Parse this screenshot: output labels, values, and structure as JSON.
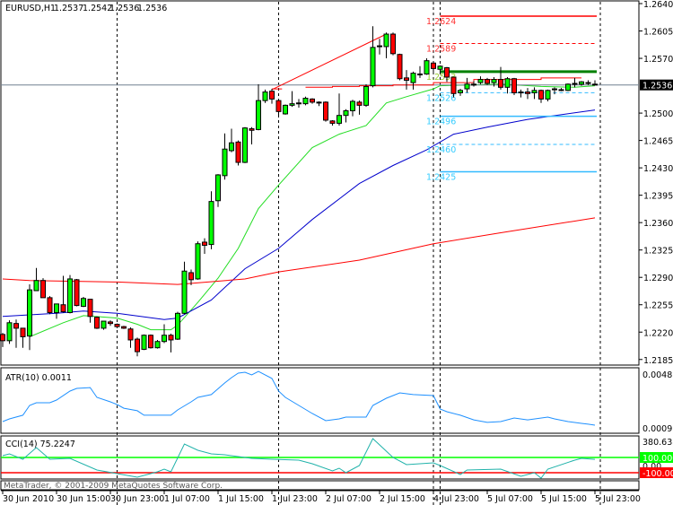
{
  "title": {
    "symbol": "EURUSD,H1",
    "open": "1.2537",
    "high": "1.2542",
    "low": "1.2536",
    "close": "1.2536"
  },
  "current_price": "1.2536",
  "price_axis": {
    "ticks": [
      "1.2640",
      "1.2605",
      "1.2570",
      "1.2500",
      "1.2465",
      "1.2430",
      "1.2395",
      "1.2360",
      "1.2325",
      "1.2290",
      "1.2255",
      "1.2220",
      "1.2185"
    ]
  },
  "atr": {
    "label": "ATR(10) 0.0011",
    "max_label": "0.0048",
    "min_label": "0.0009"
  },
  "cci": {
    "label": "CCI(14) 75.2247",
    "max_label": "380.6385",
    "upper_label": "100.0000",
    "zero_label": "0.00",
    "lower_label": "-100.0000"
  },
  "copyright": "MetaTrader, © 2001-2009 MetaQuotes Software Corp.",
  "time_axis": [
    {
      "label": "30 Jun 2010",
      "bar": 0
    },
    {
      "label": "30 Jun 15:00",
      "bar": 8
    },
    {
      "label": "30 Jun 23:00",
      "bar": 16
    },
    {
      "label": "1 Jul 07:00",
      "bar": 24
    },
    {
      "label": "1 Jul 15:00",
      "bar": 32
    },
    {
      "label": "1 Jul 23:00",
      "bar": 40
    },
    {
      "label": "2 Jul 07:00",
      "bar": 48
    },
    {
      "label": "2 Jul 15:00",
      "bar": 56
    },
    {
      "label": "4 Jul 23:00",
      "bar": 64
    },
    {
      "label": "5 Jul 07:00",
      "bar": 72
    },
    {
      "label": "5 Jul 15:00",
      "bar": 80
    },
    {
      "label": "5 Jul 23:00",
      "bar": 88
    }
  ],
  "period_separators": [
    17,
    41,
    64,
    65,
    88.8
  ],
  "colors": {
    "bull": "#00ff00",
    "bear": "#ff0000",
    "atr": "#1e90ff",
    "cci": "#20b2aa",
    "level_upper": "#00ff00",
    "level_lower": "#ff0000",
    "current_price_line": "#708090"
  },
  "chart_data": {
    "type": "candlestick",
    "ylim": [
      1.2185,
      1.264
    ],
    "candles_ohlc": [
      [
        1.2217,
        1.2219,
        1.2201,
        1.2209
      ],
      [
        1.2209,
        1.2235,
        1.2205,
        1.2232
      ],
      [
        1.2231,
        1.2236,
        1.22,
        1.2225
      ],
      [
        1.2225,
        1.2225,
        1.22,
        1.2214
      ],
      [
        1.2215,
        1.2281,
        1.2197,
        1.2274
      ],
      [
        1.2273,
        1.2302,
        1.2273,
        1.2286
      ],
      [
        1.2286,
        1.2289,
        1.2264,
        1.2264
      ],
      [
        1.2264,
        1.2266,
        1.2243,
        1.2245
      ],
      [
        1.2245,
        1.2256,
        1.2237,
        1.2256
      ],
      [
        1.2255,
        1.2292,
        1.2245,
        1.2246
      ],
      [
        1.2245,
        1.2293,
        1.2244,
        1.2288
      ],
      [
        1.2287,
        1.2288,
        1.2253,
        1.2254
      ],
      [
        1.2253,
        1.2265,
        1.2252,
        1.2263
      ],
      [
        1.2262,
        1.2262,
        1.2232,
        1.224
      ],
      [
        1.2239,
        1.224,
        1.2224,
        1.2225
      ],
      [
        1.2225,
        1.2234,
        1.2223,
        1.2234
      ],
      [
        1.2233,
        1.2235,
        1.2228,
        1.2231
      ],
      [
        1.223,
        1.2231,
        1.2225,
        1.2227
      ],
      [
        1.2227,
        1.2228,
        1.2224,
        1.2225
      ],
      [
        1.2224,
        1.2226,
        1.22,
        1.221
      ],
      [
        1.2211,
        1.2213,
        1.2189,
        1.2195
      ],
      [
        1.2198,
        1.2217,
        1.2197,
        1.2216
      ],
      [
        1.2216,
        1.2217,
        1.2199,
        1.22
      ],
      [
        1.22,
        1.221,
        1.2199,
        1.2208
      ],
      [
        1.2208,
        1.223,
        1.2206,
        1.2216
      ],
      [
        1.2216,
        1.2218,
        1.2194,
        1.221
      ],
      [
        1.2211,
        1.2246,
        1.221,
        1.2244
      ],
      [
        1.2244,
        1.231,
        1.2243,
        1.2298
      ],
      [
        1.2296,
        1.23,
        1.228,
        1.2287
      ],
      [
        1.2288,
        1.2336,
        1.2287,
        1.2333
      ],
      [
        1.2335,
        1.234,
        1.232,
        1.2331
      ],
      [
        1.2332,
        1.24,
        1.2326,
        1.2387
      ],
      [
        1.2388,
        1.2422,
        1.238,
        1.2421
      ],
      [
        1.242,
        1.2474,
        1.2415,
        1.2454
      ],
      [
        1.2452,
        1.248,
        1.245,
        1.2462
      ],
      [
        1.2463,
        1.2465,
        1.2433,
        1.2437
      ],
      [
        1.2437,
        1.2482,
        1.2436,
        1.2481
      ],
      [
        1.248,
        1.2482,
        1.246,
        1.2478
      ],
      [
        1.2479,
        1.2537,
        1.2478,
        1.2516
      ],
      [
        1.2516,
        1.253,
        1.2513,
        1.2527
      ],
      [
        1.2528,
        1.2531,
        1.2512,
        1.2518
      ],
      [
        1.2516,
        1.2517,
        1.2495,
        1.2502
      ],
      [
        1.2499,
        1.2511,
        1.2498,
        1.251
      ],
      [
        1.251,
        1.2528,
        1.2508,
        1.2512
      ],
      [
        1.2512,
        1.2518,
        1.2507,
        1.2513
      ],
      [
        1.2512,
        1.2521,
        1.251,
        1.2519
      ],
      [
        1.2518,
        1.2519,
        1.2512,
        1.2514
      ],
      [
        1.2514,
        1.2515,
        1.2509,
        1.2513
      ],
      [
        1.2514,
        1.2515,
        1.2489,
        1.2491
      ],
      [
        1.249,
        1.2491,
        1.2484,
        1.2487
      ],
      [
        1.2487,
        1.2525,
        1.2484,
        1.2497
      ],
      [
        1.2497,
        1.2505,
        1.2488,
        1.2503
      ],
      [
        1.2503,
        1.2517,
        1.2496,
        1.2515
      ],
      [
        1.2514,
        1.2516,
        1.2498,
        1.251
      ],
      [
        1.251,
        1.2537,
        1.2508,
        1.2534
      ],
      [
        1.2535,
        1.2611,
        1.2533,
        1.2584
      ],
      [
        1.2586,
        1.2595,
        1.2575,
        1.2585
      ],
      [
        1.2585,
        1.2603,
        1.257,
        1.2601
      ],
      [
        1.2601,
        1.2603,
        1.2574,
        1.2576
      ],
      [
        1.2575,
        1.2576,
        1.2542,
        1.2544
      ],
      [
        1.2545,
        1.2555,
        1.253,
        1.2542
      ],
      [
        1.2539,
        1.2553,
        1.253,
        1.2551
      ],
      [
        1.2549,
        1.256,
        1.2545,
        1.255
      ],
      [
        1.255,
        1.257,
        1.2549,
        1.2567
      ],
      [
        1.2564,
        1.2566,
        1.255,
        1.2557
      ],
      [
        1.2556,
        1.2561,
        1.255,
        1.256
      ],
      [
        1.2558,
        1.2559,
        1.254,
        1.2546
      ],
      [
        1.2546,
        1.2546,
        1.252,
        1.2525
      ],
      [
        1.2526,
        1.2531,
        1.2522,
        1.2529
      ],
      [
        1.2531,
        1.2545,
        1.2526,
        1.2537
      ],
      [
        1.2536,
        1.2541,
        1.2534,
        1.2537
      ],
      [
        1.2539,
        1.2547,
        1.2537,
        1.2543
      ],
      [
        1.2543,
        1.2545,
        1.2536,
        1.2538
      ],
      [
        1.2539,
        1.2546,
        1.2534,
        1.2543
      ],
      [
        1.2543,
        1.2559,
        1.253,
        1.2533
      ],
      [
        1.2533,
        1.2546,
        1.2525,
        1.2544
      ],
      [
        1.2544,
        1.2545,
        1.2523,
        1.2526
      ],
      [
        1.2526,
        1.253,
        1.252,
        1.2527
      ],
      [
        1.2527,
        1.2532,
        1.2518,
        1.2525
      ],
      [
        1.2526,
        1.2533,
        1.2518,
        1.2529
      ],
      [
        1.2529,
        1.253,
        1.2513,
        1.2518
      ],
      [
        1.2518,
        1.253,
        1.2515,
        1.2529
      ],
      [
        1.253,
        1.2533,
        1.2524,
        1.2531
      ],
      [
        1.253,
        1.2532,
        1.2528,
        1.253
      ],
      [
        1.2529,
        1.2538,
        1.2528,
        1.2537
      ],
      [
        1.2537,
        1.2545,
        1.2533,
        1.2538
      ],
      [
        1.2537,
        1.2541,
        1.2535,
        1.254
      ],
      [
        1.2539,
        1.2542,
        1.2536,
        1.2539
      ],
      [
        1.2537,
        1.2542,
        1.2536,
        1.2536
      ]
    ],
    "moving_averages": [
      {
        "color": "#22dd22",
        "points": [
          [
            4,
            1.2214
          ],
          [
            9,
            1.2232
          ],
          [
            12,
            1.2241
          ],
          [
            17,
            1.2238
          ],
          [
            20,
            1.223
          ],
          [
            22,
            1.2223
          ],
          [
            25,
            1.2223
          ],
          [
            26,
            1.2229
          ],
          [
            29,
            1.2258
          ],
          [
            32,
            1.2289
          ],
          [
            35,
            1.2327
          ],
          [
            38,
            1.2378
          ],
          [
            41,
            1.2408
          ],
          [
            46,
            1.2456
          ],
          [
            50,
            1.2473
          ],
          [
            54,
            1.2484
          ],
          [
            57,
            1.2513
          ],
          [
            60,
            1.2521
          ],
          [
            64,
            1.2531
          ],
          [
            65,
            1.2535
          ],
          [
            69,
            1.2536
          ],
          [
            74,
            1.2537
          ],
          [
            80,
            1.2534
          ],
          [
            85,
            1.2533
          ],
          [
            88,
            1.2535
          ]
        ]
      },
      {
        "color": "#0000cc",
        "points": [
          [
            0,
            1.224
          ],
          [
            8,
            1.2244
          ],
          [
            12,
            1.2247
          ],
          [
            17,
            1.2244
          ],
          [
            24,
            1.2236
          ],
          [
            26,
            1.2238
          ],
          [
            31,
            1.2261
          ],
          [
            36,
            1.2301
          ],
          [
            41,
            1.2327
          ],
          [
            46,
            1.2364
          ],
          [
            53,
            1.241
          ],
          [
            58,
            1.2433
          ],
          [
            63,
            1.2453
          ],
          [
            67,
            1.2473
          ],
          [
            72,
            1.2482
          ],
          [
            78,
            1.2492
          ],
          [
            88,
            1.2504
          ]
        ]
      },
      {
        "color": "#ff0000",
        "points": [
          [
            0,
            1.2288
          ],
          [
            4,
            1.2286
          ],
          [
            17,
            1.2284
          ],
          [
            26,
            1.2281
          ],
          [
            36,
            1.2288
          ],
          [
            41,
            1.2297
          ],
          [
            53,
            1.2312
          ],
          [
            64,
            1.2333
          ],
          [
            74,
            1.2347
          ],
          [
            88,
            1.2366
          ]
        ]
      }
    ],
    "trendline": {
      "color": "#ff0000",
      "points": [
        [
          40,
          1.253
        ],
        [
          57,
          1.2601
        ]
      ]
    },
    "step_line": {
      "color": "#ff0000",
      "points": [
        [
          40,
          1.2531
        ],
        [
          41.5,
          1.2531
        ],
        null,
        [
          45,
          1.2533
        ],
        [
          49,
          1.2533
        ],
        [
          49,
          1.2534
        ],
        [
          53,
          1.2534
        ],
        [
          53,
          1.2535
        ],
        [
          58,
          1.2535
        ],
        [
          58,
          1.2536
        ],
        [
          64,
          1.2536
        ],
        [
          64,
          1.2539
        ],
        [
          70,
          1.2539
        ],
        [
          70,
          1.2543
        ],
        [
          80,
          1.2543
        ],
        [
          80,
          1.2545
        ],
        [
          86,
          1.2545
        ]
      ]
    },
    "fib_levels": [
      {
        "value": "1.2624",
        "color": "#ff0000",
        "label_color": "#ff3333",
        "style": "solid"
      },
      {
        "value": "1.2589",
        "color": "#ff0000",
        "label_color": "#ff3333",
        "style": "dashed"
      },
      {
        "value": "1.2553",
        "color": "#008000",
        "label_color": "#99cc33",
        "style": "solid-thick"
      },
      {
        "value": "1.2526",
        "color": "#33bbff",
        "label_color": "#33ccff",
        "style": "dashed"
      },
      {
        "value": "1.2496",
        "color": "#33bbff",
        "label_color": "#33ccff",
        "style": "solid"
      },
      {
        "value": "1.2460",
        "color": "#33bbff",
        "label_color": "#33ccff",
        "style": "dashed"
      },
      {
        "value": "1.2425",
        "color": "#33bbff",
        "label_color": "#33ccff",
        "style": "solid"
      }
    ],
    "fib_start_bar": 65,
    "atr_series": {
      "ylim": [
        0.0009,
        0.0048
      ],
      "points": [
        [
          0,
          0.00136
        ],
        [
          1,
          0.00156
        ],
        [
          3,
          0.00183
        ],
        [
          4,
          0.00255
        ],
        [
          5,
          0.00275
        ],
        [
          7,
          0.00275
        ],
        [
          8,
          0.00295
        ],
        [
          10,
          0.00361
        ],
        [
          11,
          0.00381
        ],
        [
          13,
          0.00387
        ],
        [
          14,
          0.00315
        ],
        [
          16,
          0.00282
        ],
        [
          17,
          0.00262
        ],
        [
          18,
          0.00235
        ],
        [
          20,
          0.00216
        ],
        [
          21,
          0.00183
        ],
        [
          23,
          0.00183
        ],
        [
          25,
          0.00183
        ],
        [
          26,
          0.00222
        ],
        [
          28,
          0.00282
        ],
        [
          29,
          0.00315
        ],
        [
          31,
          0.00335
        ],
        [
          33,
          0.00421
        ],
        [
          34,
          0.0046
        ],
        [
          35,
          0.00493
        ],
        [
          36,
          0.005
        ],
        [
          37,
          0.0048
        ],
        [
          38,
          0.00506
        ],
        [
          40,
          0.00454
        ],
        [
          41,
          0.00361
        ],
        [
          42,
          0.00315
        ],
        [
          44,
          0.00255
        ],
        [
          46,
          0.00196
        ],
        [
          48,
          0.00143
        ],
        [
          50,
          0.00156
        ],
        [
          51,
          0.00169
        ],
        [
          54,
          0.00169
        ],
        [
          55,
          0.00255
        ],
        [
          57,
          0.00308
        ],
        [
          59,
          0.00348
        ],
        [
          61,
          0.00335
        ],
        [
          64,
          0.00328
        ],
        [
          65,
          0.00229
        ],
        [
          66,
          0.00209
        ],
        [
          68,
          0.00183
        ],
        [
          70,
          0.00149
        ],
        [
          72,
          0.0013
        ],
        [
          74,
          0.00136
        ],
        [
          76,
          0.00163
        ],
        [
          78,
          0.00149
        ],
        [
          81,
          0.00169
        ],
        [
          82,
          0.00156
        ],
        [
          84,
          0.00136
        ],
        [
          86,
          0.00123
        ],
        [
          87,
          0.00117
        ],
        [
          88,
          0.0011
        ]
      ]
    },
    "cci_series": {
      "ylim": [
        -220,
        380.6385
      ],
      "levels": [
        100,
        -100
      ],
      "points": [
        [
          0,
          124
        ],
        [
          1,
          147
        ],
        [
          3,
          76
        ],
        [
          5,
          229
        ],
        [
          7,
          76
        ],
        [
          10,
          88
        ],
        [
          14,
          -65
        ],
        [
          17,
          -112
        ],
        [
          20,
          -159
        ],
        [
          23,
          -88
        ],
        [
          24,
          -53
        ],
        [
          25,
          -88
        ],
        [
          27,
          276
        ],
        [
          29,
          194
        ],
        [
          31,
          147
        ],
        [
          33,
          135
        ],
        [
          37,
          88
        ],
        [
          40,
          76
        ],
        [
          44,
          65
        ],
        [
          46,
          18
        ],
        [
          49,
          -76
        ],
        [
          50,
          -41
        ],
        [
          51,
          -100
        ],
        [
          53,
          -6
        ],
        [
          55,
          347
        ],
        [
          58,
          100
        ],
        [
          60,
          6
        ],
        [
          64,
          29
        ],
        [
          65,
          -6
        ],
        [
          68,
          -124
        ],
        [
          69,
          -65
        ],
        [
          74,
          -53
        ],
        [
          77,
          -147
        ],
        [
          79,
          -100
        ],
        [
          80,
          -171
        ],
        [
          81,
          -53
        ],
        [
          85,
          65
        ],
        [
          86,
          88
        ],
        [
          88,
          75.2247
        ]
      ]
    }
  }
}
